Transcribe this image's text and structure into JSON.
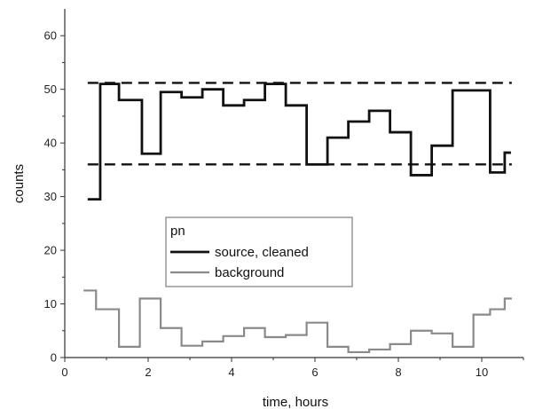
{
  "chart_data": {
    "type": "line",
    "step": true,
    "xlabel": "time, hours",
    "ylabel": "counts",
    "xlim": [
      0,
      11
    ],
    "ylim": [
      0,
      65
    ],
    "xticks": [
      0,
      2,
      4,
      6,
      8,
      10
    ],
    "yticks": [
      0,
      10,
      20,
      30,
      40,
      50,
      60
    ],
    "grid": false,
    "legend": {
      "title": "pn",
      "placement": "center-left",
      "entries": [
        "source, cleaned",
        "background"
      ]
    },
    "series": [
      {
        "name": "source, cleaned",
        "color": "#111111",
        "x": [
          0.55,
          0.85,
          1.3,
          1.85,
          2.3,
          2.8,
          3.3,
          3.8,
          4.3,
          4.8,
          5.3,
          5.8,
          6.3,
          6.8,
          7.3,
          7.8,
          8.3,
          8.8,
          9.3,
          10.2,
          10.55,
          10.7
        ],
        "y": [
          29.5,
          51,
          48,
          38,
          49.5,
          48.5,
          50,
          47,
          48,
          51,
          47,
          36,
          41,
          44,
          46,
          42,
          34,
          39.5,
          49.8,
          34.5,
          38.2,
          38.2
        ]
      },
      {
        "name": "background",
        "color": "#8a8a8a",
        "x": [
          0.45,
          0.75,
          1.3,
          1.8,
          2.3,
          2.8,
          3.3,
          3.8,
          4.3,
          4.8,
          5.3,
          5.8,
          6.3,
          6.8,
          7.3,
          7.8,
          8.3,
          8.8,
          9.3,
          9.8,
          10.2,
          10.55,
          10.72
        ],
        "y": [
          12.5,
          9,
          2,
          11,
          5.5,
          2.2,
          3,
          4,
          5.5,
          3.8,
          4.2,
          6.5,
          2,
          1,
          1.5,
          2.5,
          5,
          4.5,
          2,
          8,
          9,
          11,
          11
        ]
      }
    ],
    "reference_lines": [
      {
        "y": 51.2,
        "style": "dashed",
        "color": "#111111"
      },
      {
        "y": 36,
        "style": "dashed",
        "color": "#111111"
      }
    ]
  }
}
